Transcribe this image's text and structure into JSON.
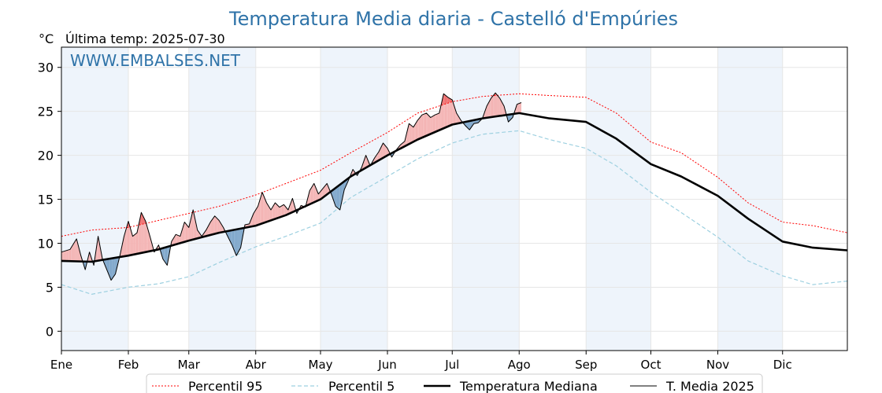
{
  "chart_data": {
    "type": "line",
    "title": "Temperatura Media diaria - Castelló d'Empúries",
    "unit_label": "°C",
    "subtitle": "Última temp: 2025-07-30",
    "watermark": "WWW.EMBALSES.NET",
    "ylim": [
      -2.2,
      32.3
    ],
    "y_ticks": [
      0,
      5,
      10,
      15,
      20,
      25,
      30
    ],
    "months": [
      "Ene",
      "Feb",
      "Mar",
      "Abr",
      "May",
      "Jun",
      "Jul",
      "Ago",
      "Sep",
      "Oct",
      "Nov",
      "Dic"
    ],
    "x_unit": "day of year",
    "grid": true,
    "legend_position": "bottom",
    "colors": {
      "p95": "#ff0000",
      "p5": "#9dd0e0",
      "median": "#000000",
      "current": "#000000",
      "above_fill": "#f4b4b4",
      "above_strong_fill": "#f07070",
      "below_fill": "#7fa7cb",
      "title": "#2f73a8",
      "band": "#eef4fb"
    },
    "series": [
      {
        "name": "Percentil 95",
        "style": "dotted-red",
        "points": [
          [
            1,
            10.8
          ],
          [
            15,
            11.5
          ],
          [
            32,
            11.8
          ],
          [
            46,
            12.6
          ],
          [
            60,
            13.4
          ],
          [
            74,
            14.2
          ],
          [
            91,
            15.5
          ],
          [
            105,
            16.8
          ],
          [
            121,
            18.3
          ],
          [
            135,
            20.3
          ],
          [
            152,
            22.6
          ],
          [
            166,
            24.8
          ],
          [
            182,
            26.1
          ],
          [
            196,
            26.7
          ],
          [
            213,
            27.0
          ],
          [
            227,
            26.8
          ],
          [
            244,
            26.6
          ],
          [
            258,
            24.8
          ],
          [
            274,
            21.5
          ],
          [
            288,
            20.3
          ],
          [
            305,
            17.5
          ],
          [
            319,
            14.6
          ],
          [
            335,
            12.4
          ],
          [
            349,
            12.0
          ],
          [
            365,
            11.2
          ]
        ]
      },
      {
        "name": "Percentil 5",
        "style": "dashed-lightblue",
        "points": [
          [
            1,
            5.3
          ],
          [
            15,
            4.2
          ],
          [
            32,
            5.0
          ],
          [
            46,
            5.4
          ],
          [
            60,
            6.2
          ],
          [
            74,
            7.8
          ],
          [
            91,
            9.6
          ],
          [
            105,
            10.8
          ],
          [
            121,
            12.3
          ],
          [
            135,
            15.2
          ],
          [
            152,
            17.6
          ],
          [
            166,
            19.6
          ],
          [
            182,
            21.4
          ],
          [
            196,
            22.4
          ],
          [
            213,
            22.8
          ],
          [
            227,
            21.8
          ],
          [
            244,
            20.8
          ],
          [
            258,
            18.8
          ],
          [
            274,
            15.8
          ],
          [
            288,
            13.5
          ],
          [
            305,
            10.7
          ],
          [
            319,
            8.0
          ],
          [
            335,
            6.3
          ],
          [
            349,
            5.3
          ],
          [
            365,
            5.7
          ]
        ]
      },
      {
        "name": "Temperatura Mediana",
        "style": "solid-black-thick",
        "points": [
          [
            1,
            8.0
          ],
          [
            15,
            7.9
          ],
          [
            32,
            8.6
          ],
          [
            46,
            9.3
          ],
          [
            60,
            10.3
          ],
          [
            74,
            11.2
          ],
          [
            91,
            12.0
          ],
          [
            105,
            13.2
          ],
          [
            121,
            15.0
          ],
          [
            135,
            17.6
          ],
          [
            152,
            20.0
          ],
          [
            166,
            21.8
          ],
          [
            182,
            23.5
          ],
          [
            196,
            24.2
          ],
          [
            213,
            24.8
          ],
          [
            227,
            24.2
          ],
          [
            244,
            23.8
          ],
          [
            258,
            21.9
          ],
          [
            274,
            19.0
          ],
          [
            288,
            17.6
          ],
          [
            305,
            15.4
          ],
          [
            319,
            12.8
          ],
          [
            335,
            10.2
          ],
          [
            349,
            9.5
          ],
          [
            365,
            9.2
          ]
        ]
      },
      {
        "name": "T. Media 2025",
        "style": "solid-black-thin",
        "points": [
          [
            1,
            9.0
          ],
          [
            5,
            9.3
          ],
          [
            8,
            10.5
          ],
          [
            10,
            8.6
          ],
          [
            12,
            7.0
          ],
          [
            14,
            9.0
          ],
          [
            16,
            7.5
          ],
          [
            18,
            10.8
          ],
          [
            20,
            8.2
          ],
          [
            22,
            7.0
          ],
          [
            24,
            5.8
          ],
          [
            26,
            6.5
          ],
          [
            28,
            8.5
          ],
          [
            30,
            10.8
          ],
          [
            32,
            12.5
          ],
          [
            34,
            10.8
          ],
          [
            36,
            11.2
          ],
          [
            38,
            13.5
          ],
          [
            40,
            12.5
          ],
          [
            42,
            10.8
          ],
          [
            44,
            9.0
          ],
          [
            46,
            9.8
          ],
          [
            48,
            8.2
          ],
          [
            50,
            7.5
          ],
          [
            52,
            10.2
          ],
          [
            54,
            11.0
          ],
          [
            56,
            10.8
          ],
          [
            58,
            12.4
          ],
          [
            60,
            11.8
          ],
          [
            62,
            13.8
          ],
          [
            64,
            11.5
          ],
          [
            66,
            10.8
          ],
          [
            68,
            11.5
          ],
          [
            70,
            12.4
          ],
          [
            72,
            13.1
          ],
          [
            74,
            12.6
          ],
          [
            76,
            11.8
          ],
          [
            78,
            10.8
          ],
          [
            80,
            9.8
          ],
          [
            82,
            8.6
          ],
          [
            84,
            9.5
          ],
          [
            86,
            12.1
          ],
          [
            88,
            12.2
          ],
          [
            90,
            13.4
          ],
          [
            92,
            14.2
          ],
          [
            94,
            15.8
          ],
          [
            96,
            14.6
          ],
          [
            98,
            13.8
          ],
          [
            100,
            14.6
          ],
          [
            102,
            14.1
          ],
          [
            104,
            14.4
          ],
          [
            106,
            13.8
          ],
          [
            108,
            15.1
          ],
          [
            110,
            13.4
          ],
          [
            112,
            14.3
          ],
          [
            114,
            14.1
          ],
          [
            116,
            16.0
          ],
          [
            118,
            16.8
          ],
          [
            120,
            15.6
          ],
          [
            122,
            16.2
          ],
          [
            124,
            16.8
          ],
          [
            126,
            15.6
          ],
          [
            128,
            14.2
          ],
          [
            130,
            13.8
          ],
          [
            132,
            16.1
          ],
          [
            134,
            17.2
          ],
          [
            136,
            18.4
          ],
          [
            138,
            17.7
          ],
          [
            140,
            18.6
          ],
          [
            142,
            20.0
          ],
          [
            144,
            18.8
          ],
          [
            146,
            19.7
          ],
          [
            148,
            20.4
          ],
          [
            150,
            21.4
          ],
          [
            152,
            20.8
          ],
          [
            154,
            19.8
          ],
          [
            156,
            20.6
          ],
          [
            158,
            21.2
          ],
          [
            160,
            21.6
          ],
          [
            162,
            23.6
          ],
          [
            164,
            23.2
          ],
          [
            166,
            24.0
          ],
          [
            168,
            24.6
          ],
          [
            170,
            24.8
          ],
          [
            172,
            24.3
          ],
          [
            174,
            24.6
          ],
          [
            176,
            24.8
          ],
          [
            178,
            27.0
          ],
          [
            180,
            26.6
          ],
          [
            182,
            26.3
          ],
          [
            184,
            24.8
          ],
          [
            186,
            24.0
          ],
          [
            188,
            23.4
          ],
          [
            190,
            22.9
          ],
          [
            192,
            23.6
          ],
          [
            194,
            23.7
          ],
          [
            196,
            24.2
          ],
          [
            198,
            25.6
          ],
          [
            200,
            26.5
          ],
          [
            202,
            27.1
          ],
          [
            204,
            26.5
          ],
          [
            206,
            25.6
          ],
          [
            208,
            23.8
          ],
          [
            210,
            24.3
          ],
          [
            212,
            25.8
          ],
          [
            214,
            26.0
          ]
        ]
      }
    ],
    "legend": [
      "Percentil 95",
      "Percentil 5",
      "Temperatura Mediana",
      "T. Media 2025"
    ]
  }
}
